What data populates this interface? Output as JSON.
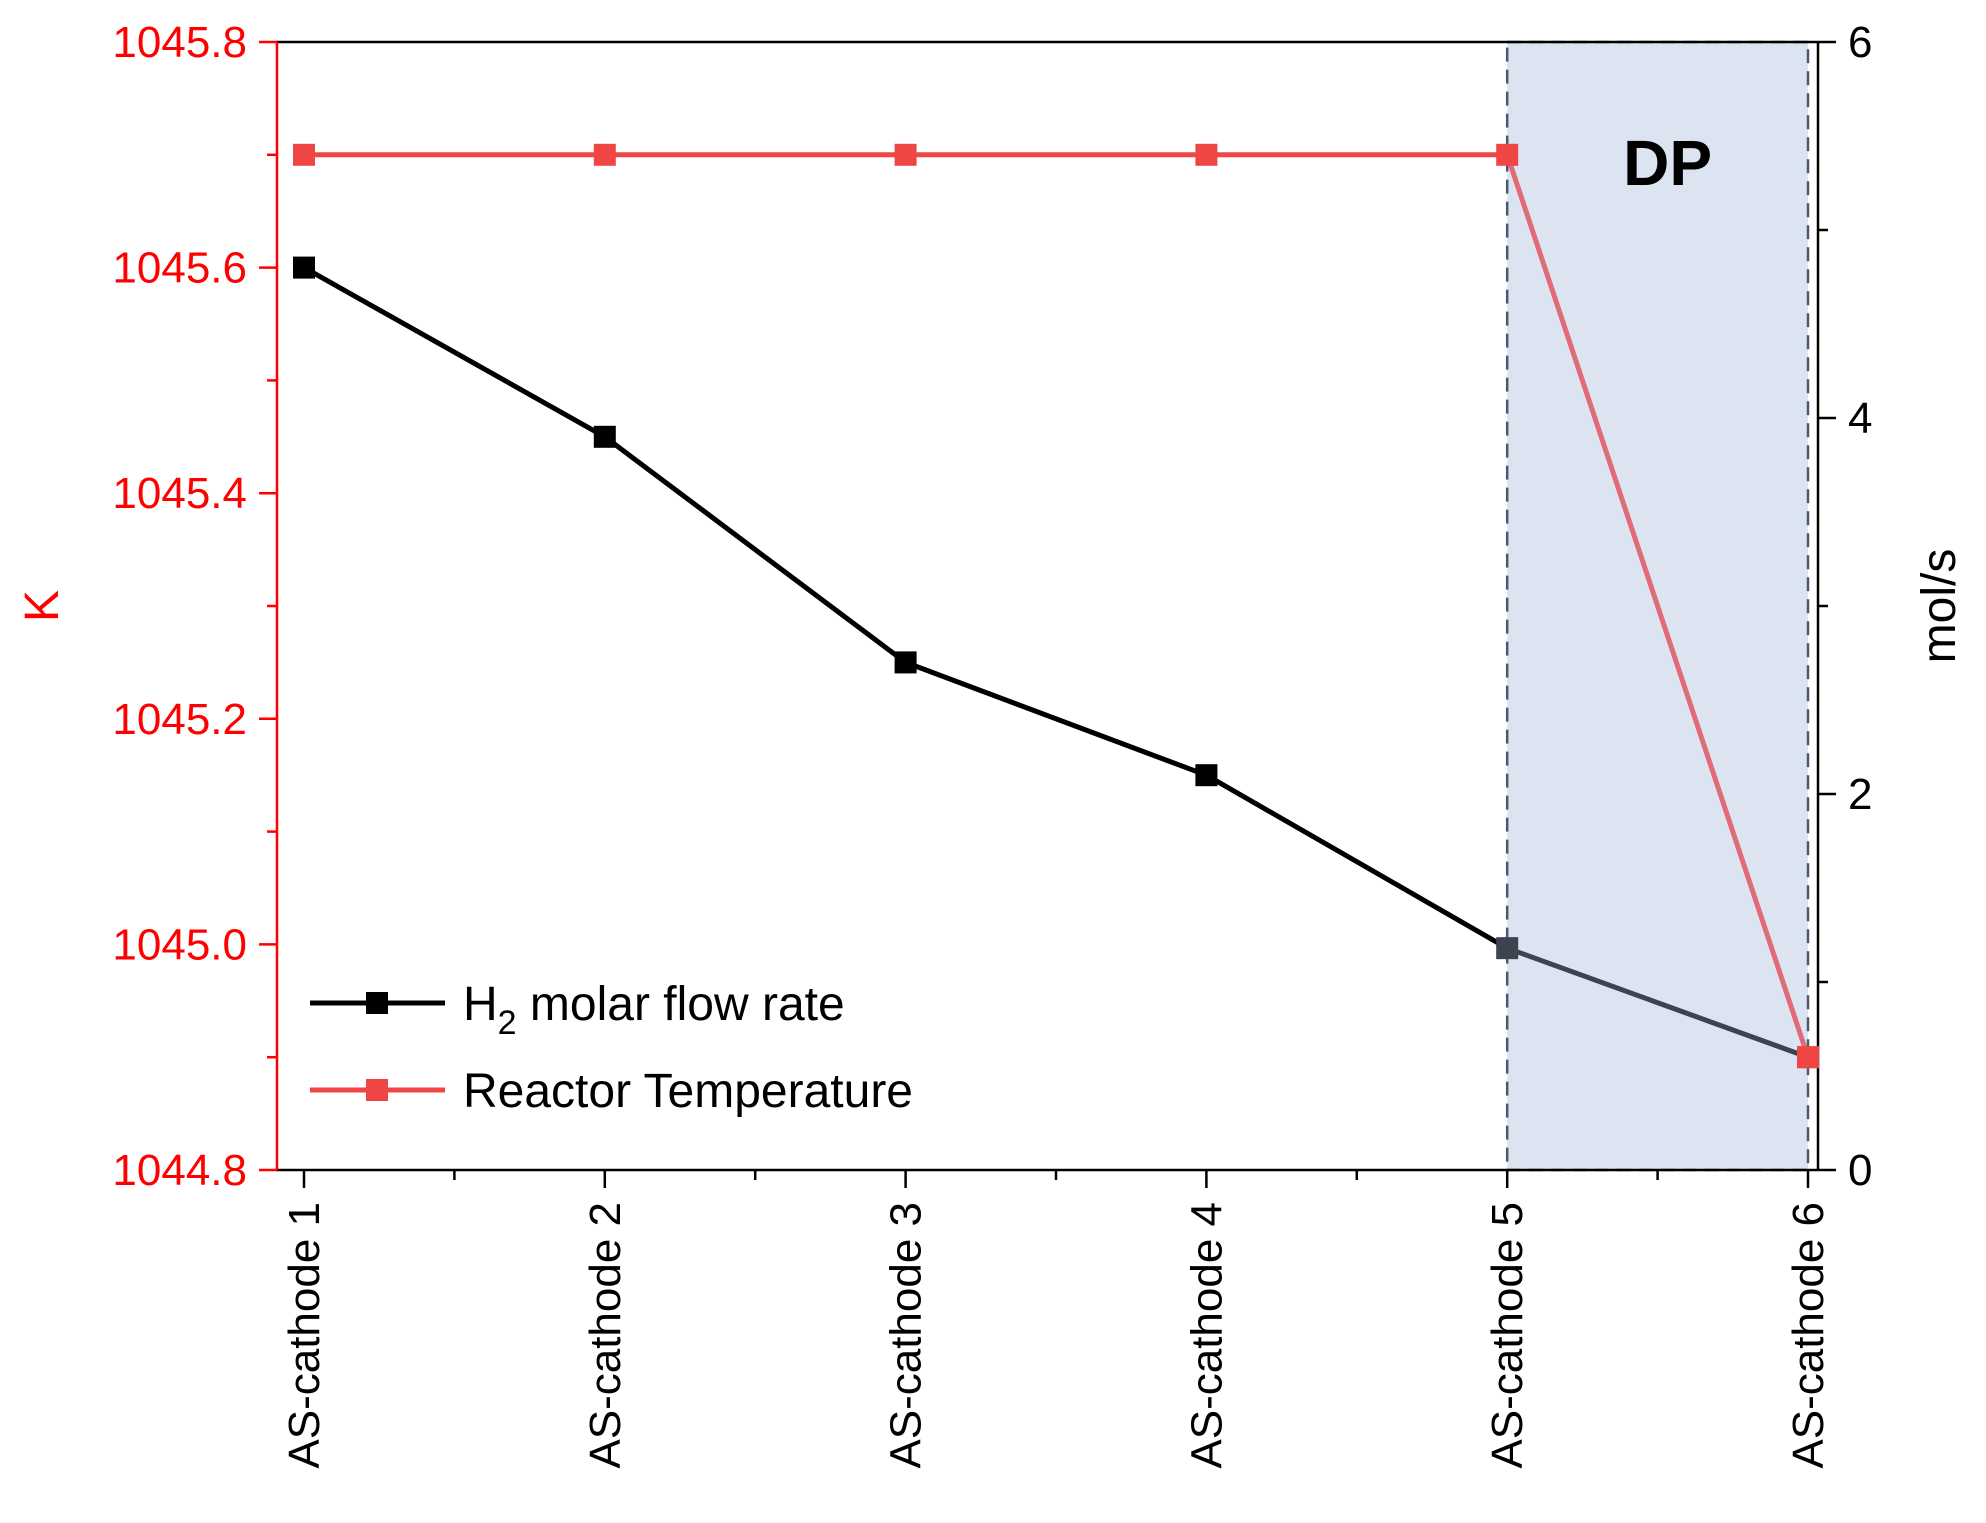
{
  "chart_data": {
    "type": "line",
    "title": "",
    "categories": [
      "AS-cathode 1",
      "AS-cathode 2",
      "AS-cathode 3",
      "AS-cathode 4",
      "AS-cathode 5",
      "AS-cathode 6"
    ],
    "series": [
      {
        "name": "H2 molar flow rate",
        "axis": "right",
        "color": "#000000",
        "values": [
          4.8,
          3.9,
          2.7,
          2.1,
          1.18,
          0.6
        ]
      },
      {
        "name": "Reactor Temperature",
        "axis": "left",
        "color": "#f04545",
        "values": [
          1045.7,
          1045.7,
          1045.7,
          1045.7,
          1045.7,
          1044.9
        ]
      }
    ],
    "left_axis": {
      "label": "K",
      "color": "#ff0000",
      "ylim": [
        1044.8,
        1045.8
      ],
      "ticks": [
        1044.8,
        1045.0,
        1045.2,
        1045.4,
        1045.6,
        1045.8
      ],
      "tick_labels": [
        "1044.8",
        "1045.0",
        "1045.2",
        "1045.4",
        "1045.6",
        "1045.8"
      ]
    },
    "right_axis": {
      "label": "mol/s",
      "color": "#000000",
      "ylim": [
        0,
        6
      ],
      "ticks": [
        0,
        2,
        4,
        6
      ],
      "tick_labels": [
        "0",
        "2",
        "4",
        "6"
      ]
    },
    "legend": {
      "position": "bottom-left",
      "entries": [
        {
          "main": "H",
          "sub": "2",
          "rest": " molar flow rate"
        },
        {
          "main": "Reactor Temperature",
          "sub": "",
          "rest": ""
        }
      ]
    },
    "annotations": [
      {
        "text": "DP",
        "region_from": "AS-cathode 5",
        "region_to": "AS-cathode 6",
        "fill": "#dce4f2",
        "border": "#4a5a70"
      }
    ],
    "grid": false
  }
}
